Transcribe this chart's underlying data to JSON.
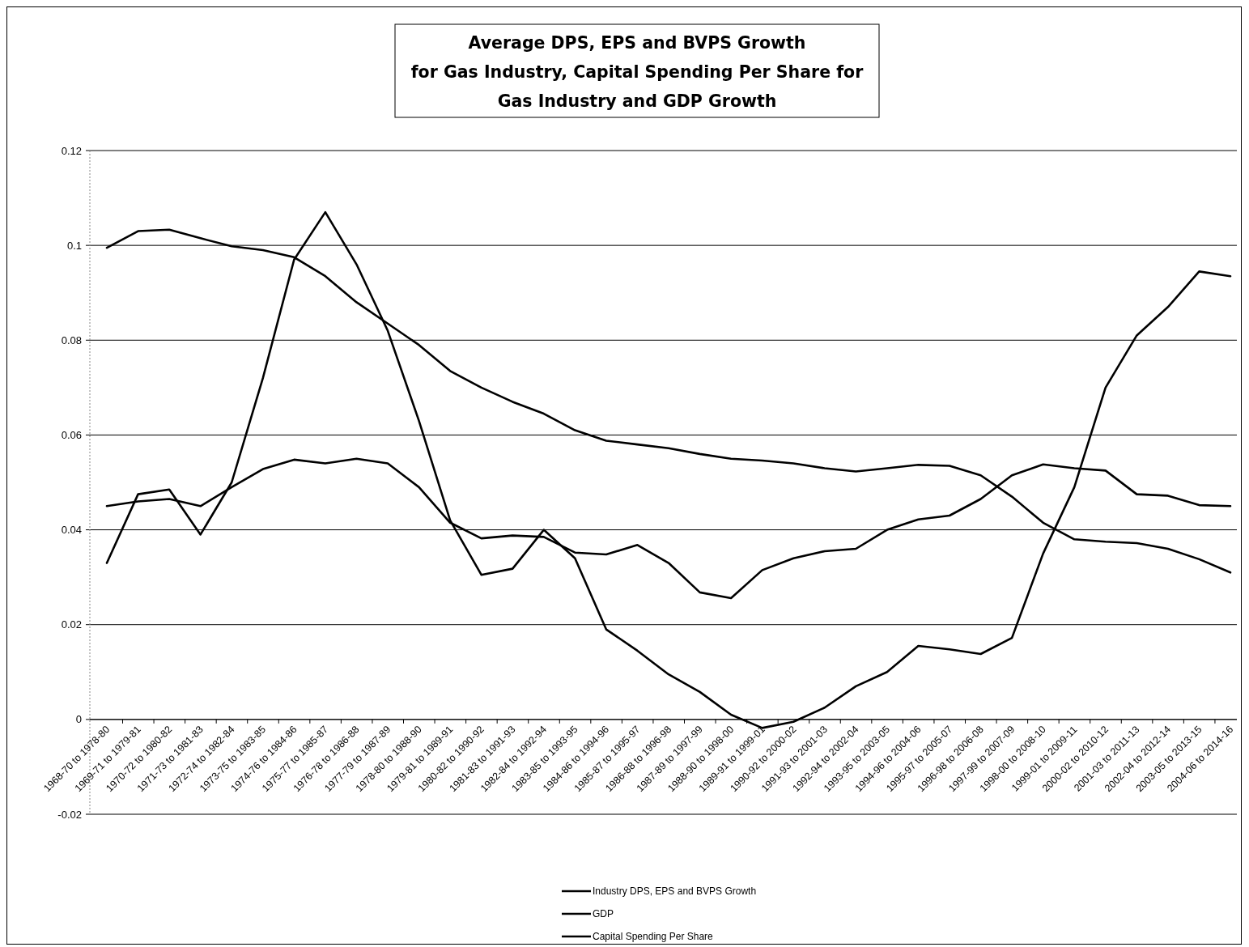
{
  "chart_data": {
    "type": "line",
    "title": "Average DPS, EPS and BVPS Growth\nfor Gas Industry, Capital Spending Per Share for\nGas Industry and GDP Growth",
    "categories": [
      "1968-70 to 1978-80",
      "1969-71 to 1979-81",
      "1970-72 to 1980-82",
      "1971-73 to 1981-83",
      "1972-74 to 1982-84",
      "1973-75 to 1983-85",
      "1974-76 to 1984-86",
      "1975-77 to 1985-87",
      "1976-78 to 1986-88",
      "1977-79 to 1987-89",
      "1978-80 to 1988-90",
      "1979-81 to 1989-91",
      "1980-82 to 1990-92",
      "1981-83 to 1991-93",
      "1982-84 to 1992-94",
      "1983-85 to 1993-95",
      "1984-86 to 1994-96",
      "1985-87 to 1995-97",
      "1986-88 to 1996-98",
      "1987-89 to 1997-99",
      "1988-90 to 1998-00",
      "1989-91 to 1999-01",
      "1990-92 to 2000-02",
      "1991-93 to 2001-03",
      "1992-94 to 2002-04",
      "1993-95 to 2003-05",
      "1994-96 to 2004-06",
      "1995-97 to 2005-07",
      "1996-98 to 2006-08",
      "1997-99 to 2007-09",
      "1998-00 to 2008-10",
      "1999-01 to 2009-11",
      "2000-02 to 2010-12",
      "2001-03 to 2011-13",
      "2002-04 to 2012-14",
      "2003-05 to 2013-15",
      "2004-06 to 2014-16"
    ],
    "series": [
      {
        "name": "Industry DPS, EPS and BVPS Growth",
        "color": "#000000",
        "values": [
          0.033,
          0.0475,
          0.0485,
          0.039,
          0.05,
          0.072,
          0.097,
          0.107,
          0.096,
          0.082,
          0.063,
          0.042,
          0.0305,
          0.0318,
          0.04,
          0.034,
          0.019,
          0.0145,
          0.0095,
          0.0058,
          0.001,
          -0.0018,
          -0.0005,
          0.0025,
          0.007,
          0.01,
          0.0155,
          0.0148,
          0.0138,
          0.0172,
          0.035,
          0.049,
          0.07,
          0.081,
          0.087,
          0.0945,
          0.0935
        ]
      },
      {
        "name": "GDP",
        "color": "#000000",
        "values": [
          0.0995,
          0.103,
          0.1033,
          0.1015,
          0.0998,
          0.099,
          0.0975,
          0.0935,
          0.088,
          0.0835,
          0.079,
          0.0735,
          0.07,
          0.067,
          0.0645,
          0.061,
          0.0588,
          0.058,
          0.0572,
          0.056,
          0.055,
          0.0546,
          0.054,
          0.053,
          0.0523,
          0.053,
          0.0537,
          0.0535,
          0.0515,
          0.047,
          0.0415,
          0.038,
          0.0375,
          0.0372,
          0.036,
          0.0338,
          0.031
        ]
      },
      {
        "name": "Capital Spending Per Share",
        "color": "#000000",
        "values": [
          0.045,
          0.046,
          0.0465,
          0.045,
          0.049,
          0.0528,
          0.0548,
          0.054,
          0.055,
          0.054,
          0.049,
          0.0415,
          0.0382,
          0.0388,
          0.0385,
          0.0352,
          0.0348,
          0.0368,
          0.033,
          0.0268,
          0.0256,
          0.0315,
          0.034,
          0.0355,
          0.036,
          0.04,
          0.0422,
          0.043,
          0.0465,
          0.0515,
          0.0538,
          0.053,
          0.0525,
          0.0475,
          0.0472,
          0.0452,
          0.045
        ]
      }
    ],
    "ylim": [
      -0.02,
      0.12
    ],
    "yticks": [
      -0.02,
      0,
      0.02,
      0.04,
      0.06,
      0.08,
      0.1,
      0.12
    ],
    "grid": "y",
    "legend": "bottom",
    "marker": "none",
    "line_style": "solid"
  }
}
